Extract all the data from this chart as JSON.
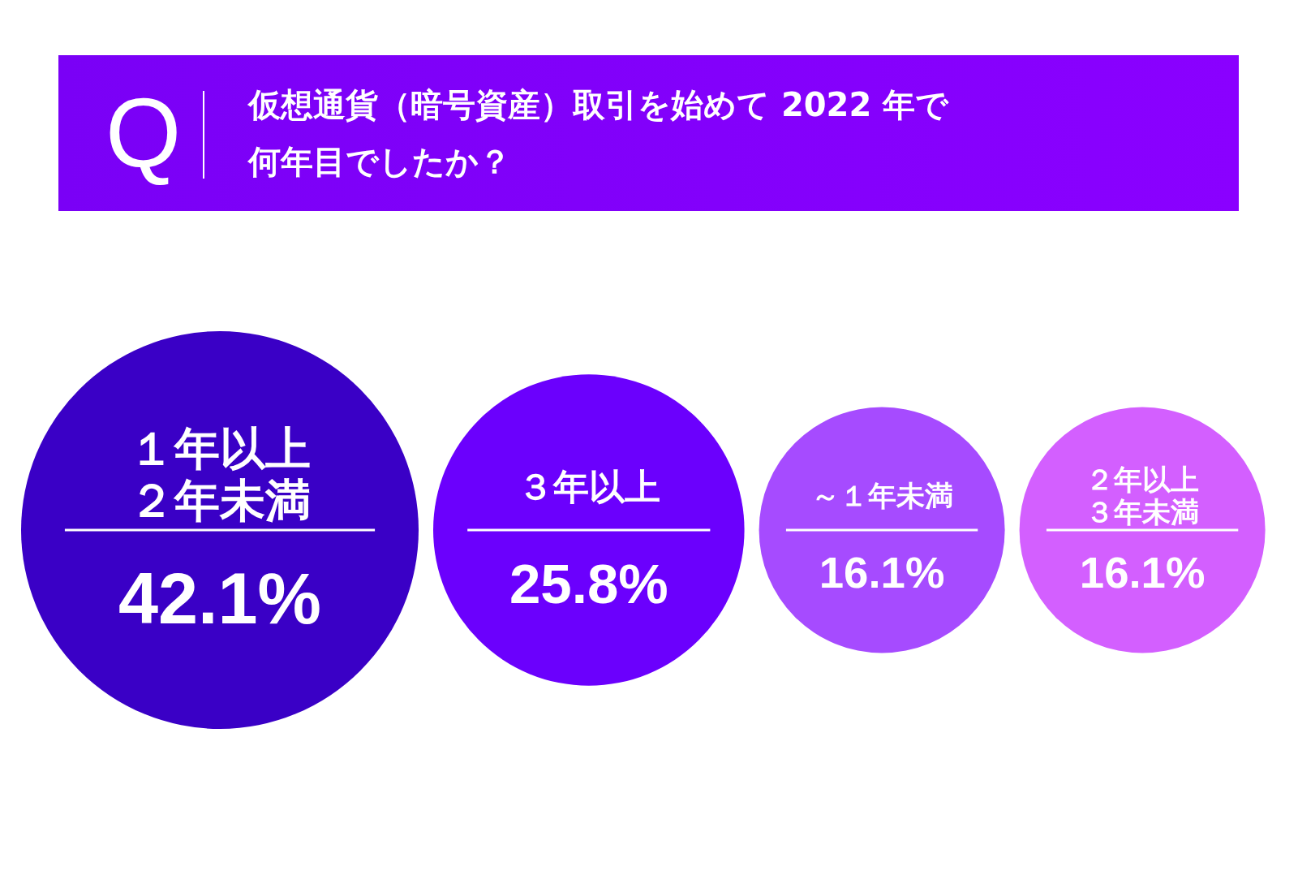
{
  "chart_data": {
    "type": "other",
    "title": "仮想通貨（暗号資産）取引を始めて 2022 年で何年目でしたか？",
    "annotations": [
      "Q"
    ],
    "categories": [
      "１年以上２年未満",
      "３年以上",
      "～１年未満",
      "２年以上３年未満"
    ],
    "values": [
      42.1,
      25.8,
      16.1,
      16.1
    ],
    "value_labels": [
      "42.1%",
      "25.8%",
      "16.1%",
      "16.1%"
    ],
    "colors": [
      "#3a00c6",
      "#6b00fd",
      "#a64bff",
      "#d35fff"
    ]
  }
}
